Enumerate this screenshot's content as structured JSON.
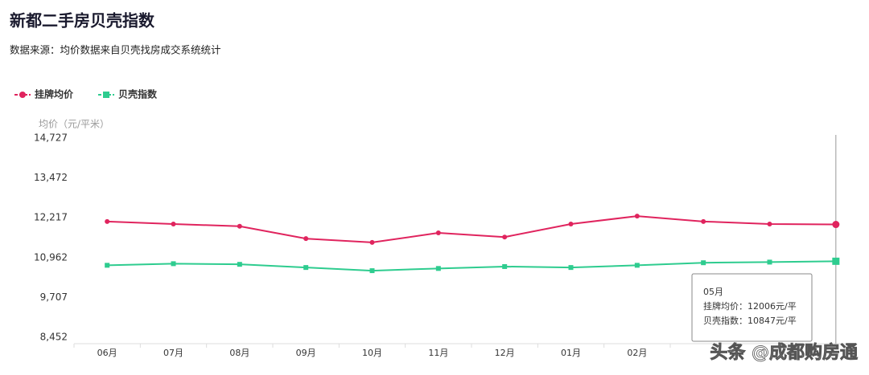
{
  "chart_data": {
    "type": "line",
    "title": "新都二手房贝壳指数",
    "subtitle": "数据来源：均价数据来自贝壳找房成交系统统计",
    "y_axis_label": "均价（元/平米）",
    "categories": [
      "06月",
      "07月",
      "08月",
      "09月",
      "10月",
      "11月",
      "12月",
      "01月",
      "02月",
      null,
      null,
      null
    ],
    "series": [
      {
        "name": "挂牌均价",
        "color": "#e0245e",
        "marker": "circle",
        "values": [
          12100,
          12020,
          11950,
          11560,
          11440,
          11740,
          11610,
          12020,
          12270,
          12100,
          12020,
          12006
        ]
      },
      {
        "name": "贝壳指数",
        "color": "#2ecc8f",
        "marker": "square",
        "values": [
          10720,
          10770,
          10750,
          10650,
          10550,
          10620,
          10680,
          10650,
          10720,
          10800,
          10820,
          10847
        ]
      }
    ],
    "ylim": [
      8452,
      14727
    ],
    "yticks": [
      {
        "value": 8452,
        "label": "8,452"
      },
      {
        "value": 9707,
        "label": "9,707"
      },
      {
        "value": 10962,
        "label": "10,962"
      },
      {
        "value": 12217,
        "label": "12,217"
      },
      {
        "value": 13472,
        "label": "13,472"
      },
      {
        "value": 14727,
        "label": "14,727"
      }
    ],
    "grid": false,
    "legend": "top-left",
    "tooltip": {
      "title": "05月",
      "lines": [
        "挂牌均价：12006元/平",
        "贝壳指数：10847元/平"
      ]
    },
    "watermark": "头条 @成都购房通"
  }
}
